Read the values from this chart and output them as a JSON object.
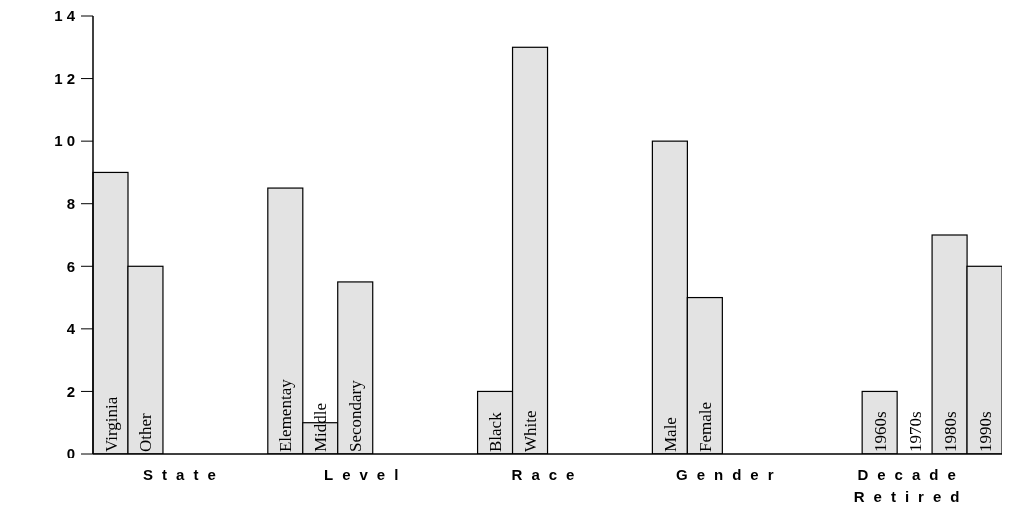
{
  "chart_data": {
    "type": "bar",
    "categories": [
      "Virginia",
      "Other",
      null,
      null,
      null,
      "Elementay",
      "Middle",
      "Secondary",
      null,
      null,
      null,
      "Black",
      "White",
      null,
      null,
      null,
      "Male",
      "Female",
      null,
      null,
      null,
      null,
      "1960s",
      "1970s",
      "1980s",
      "1990s"
    ],
    "values": [
      9,
      6,
      null,
      null,
      null,
      8.5,
      1,
      5.5,
      null,
      null,
      null,
      2,
      13,
      null,
      null,
      null,
      10,
      5,
      null,
      null,
      null,
      null,
      2,
      0,
      7,
      6
    ],
    "color": "#e3e3e3",
    "ylim": [
      0,
      14
    ],
    "yticks": [
      0,
      2,
      4,
      6,
      8,
      10,
      12,
      14
    ],
    "annotations": [
      "State",
      "Level",
      "Race",
      "Gender",
      "Decade Retired"
    ]
  }
}
